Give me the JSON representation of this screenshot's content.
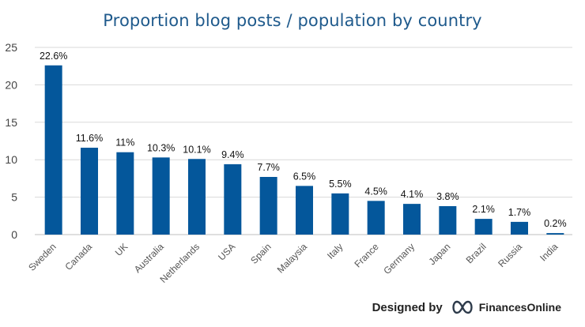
{
  "credit": {
    "prefix": "Designed by",
    "brand": "FinancesOnline",
    "logo_icon": "infinity-logo-icon"
  },
  "colors": {
    "bar": "#04579b",
    "title": "#1f5a8c",
    "grid": "#d9d9d9",
    "axis": "#bfbfbf"
  },
  "chart_data": {
    "type": "bar",
    "title": "Proportion blog posts / population by country",
    "xlabel": "",
    "ylabel": "",
    "categories": [
      "Sweden",
      "Canada",
      "UK",
      "Australia",
      "Netherlands",
      "USA",
      "Spain",
      "Malaysia",
      "Italy",
      "France",
      "Germany",
      "Japan",
      "Brazil",
      "Russia",
      "India"
    ],
    "values": [
      22.6,
      11.6,
      11,
      10.3,
      10.1,
      9.4,
      7.7,
      6.5,
      5.5,
      4.5,
      4.1,
      3.8,
      2.1,
      1.7,
      0.2
    ],
    "data_labels": [
      "22.6%",
      "11.6%",
      "11%",
      "10.3%",
      "10.1%",
      "9.4%",
      "7.7%",
      "6.5%",
      "5.5%",
      "4.5%",
      "4.1%",
      "3.8%",
      "2.1%",
      "1.7%",
      "0.2%"
    ],
    "ylim": [
      0,
      25
    ],
    "yticks": [
      0,
      5,
      10,
      15,
      20,
      25
    ],
    "grid": true,
    "legend": "none"
  }
}
